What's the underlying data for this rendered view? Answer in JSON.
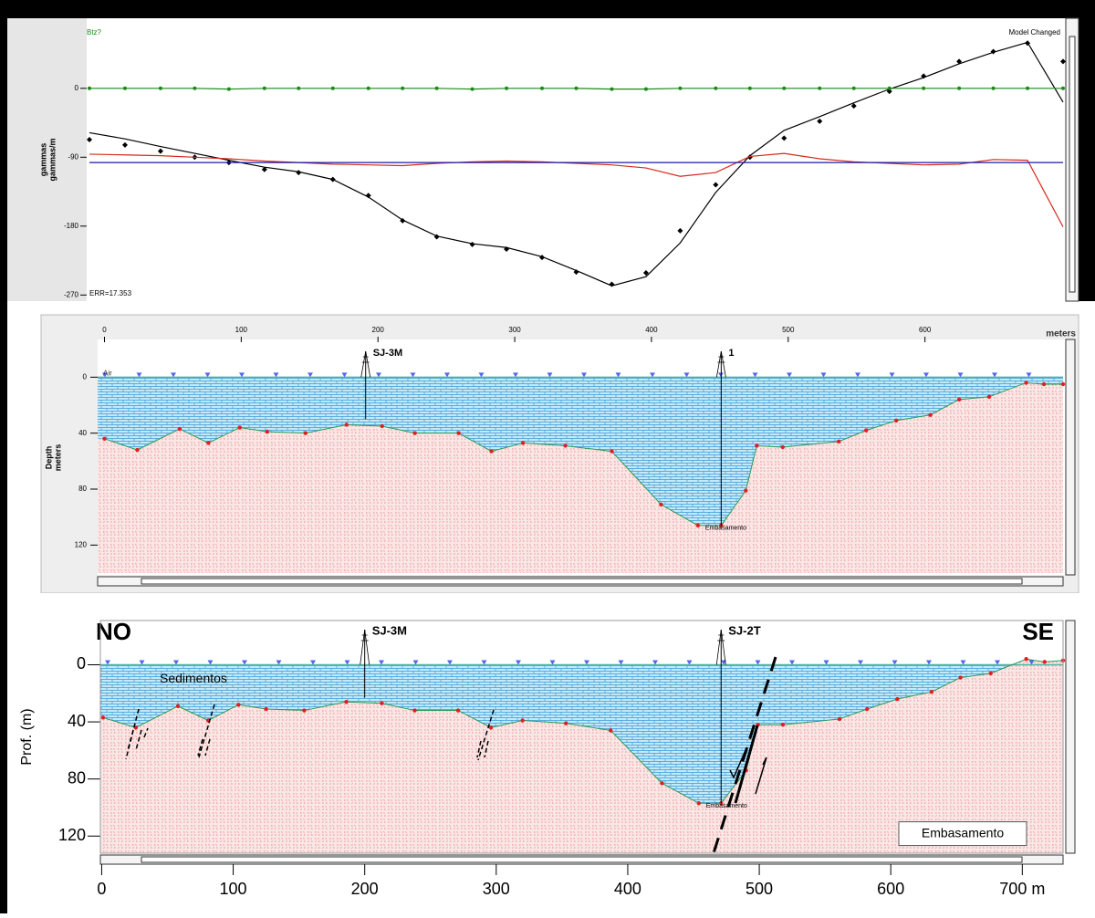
{
  "chart_data": [
    {
      "type": "line",
      "title": "Btz?",
      "status": "Model Changed",
      "ylabel": [
        "gammas",
        "gammas/m"
      ],
      "annotation": "ERR=17.353",
      "xlim": [
        -13,
        701
      ],
      "ylim": [
        -278,
        82
      ],
      "yticks": [
        0,
        -90,
        -180,
        -270
      ],
      "x": [
        -11,
        15,
        41,
        66,
        91,
        117,
        142,
        167,
        193,
        218,
        243,
        269,
        294,
        320,
        345,
        371,
        396,
        421,
        447,
        472,
        497,
        523,
        548,
        574,
        599,
        625,
        650,
        675,
        701
      ],
      "series": [
        {
          "color": "#000000",
          "style": "markers",
          "marker": "diamond",
          "values": [
            -67,
            -74,
            -82,
            -90,
            -97,
            -106,
            -110,
            -119,
            -140,
            -173,
            -194,
            -204,
            -210,
            -221,
            -240,
            -256,
            -241,
            -186,
            -126,
            -90,
            -65,
            -43,
            -23,
            -4,
            16,
            35,
            48,
            59,
            35
          ]
        },
        {
          "color": "#000000",
          "style": "line",
          "values": [
            -58,
            -66,
            -76,
            -85,
            -94,
            -103,
            -109,
            -119,
            -142,
            -172,
            -193,
            -203,
            -208,
            -220,
            -238,
            -258,
            -246,
            -202,
            -136,
            -88,
            -55,
            -37,
            -19,
            -1,
            14,
            32,
            47,
            60,
            -18
          ]
        },
        {
          "color": "#1a8a1a",
          "style": "line",
          "marker": "circle",
          "values": [
            0,
            0,
            0,
            0,
            -1,
            0,
            0,
            0,
            0,
            0,
            0,
            -1,
            0,
            0,
            0,
            -1,
            -1,
            0,
            0,
            0,
            0,
            0,
            0,
            0,
            0,
            0,
            0,
            0,
            0
          ]
        },
        {
          "color": "#d42a1e",
          "style": "line",
          "values": [
            -86,
            -87,
            -88,
            -90,
            -92,
            -95,
            -97,
            -99,
            -100,
            -101,
            -98,
            -96,
            -95,
            -96,
            -98,
            -100,
            -104,
            -115,
            -110,
            -89,
            -85,
            -92,
            -96,
            -98,
            -100,
            -99,
            -93,
            -94,
            -181
          ]
        },
        {
          "color": "#1a1aa8",
          "style": "line",
          "values": [
            -97,
            -97,
            -97,
            -97,
            -97,
            -97,
            -97,
            -97,
            -97,
            -97,
            -97,
            -97,
            -97,
            -97,
            -97,
            -97,
            -97,
            -97,
            -97,
            -97,
            -97,
            -97,
            -97,
            -97,
            -97,
            -97,
            -97,
            -97,
            -97
          ]
        }
      ]
    },
    {
      "type": "section",
      "xlabel": "meters",
      "ylabel": [
        "Depth",
        "meters"
      ],
      "surface_label": "Air",
      "xlim": [
        -5,
        701
      ],
      "ylim": [
        -25,
        140
      ],
      "xticks": [
        0,
        100,
        200,
        300,
        400,
        500,
        600
      ],
      "yticks": [
        0,
        40,
        80,
        120
      ],
      "wells": [
        {
          "name": "SJ-3M",
          "x": 191,
          "depth": 30
        },
        {
          "name": "1",
          "x": 451,
          "depth": 106
        }
      ],
      "interface": {
        "label": "Embasamento",
        "x": [
          0,
          24,
          55,
          76,
          99,
          119,
          147,
          177,
          203,
          227,
          259,
          283,
          306,
          337,
          371,
          407,
          434,
          451,
          469,
          477,
          496,
          537,
          557,
          579,
          604,
          625,
          647,
          674,
          687,
          701
        ],
        "depth": [
          44,
          52,
          37,
          47,
          36,
          39,
          40,
          34,
          35,
          40,
          40,
          53,
          47,
          49,
          53,
          91,
          106,
          106,
          81,
          49,
          50,
          46,
          38,
          31,
          27,
          16,
          14,
          4,
          5,
          5
        ]
      }
    },
    {
      "type": "section",
      "ylabel": [
        "Prof. (m)"
      ],
      "corner_labels": [
        "NO",
        "SE"
      ],
      "layer_labels": [
        "Sedimentos",
        "Embasamento"
      ],
      "xlim": [
        -1,
        731
      ],
      "ylim": [
        -31,
        132
      ],
      "xticks": [
        0,
        100,
        200,
        300,
        400,
        500,
        600,
        {
          "value": 700,
          "label": "700 m"
        }
      ],
      "yticks": [
        0,
        40,
        80,
        120
      ],
      "wells": [
        {
          "name": "SJ-3M",
          "x": 200,
          "depth": 23
        },
        {
          "name": "SJ-2T",
          "x": 471,
          "depth": 97
        }
      ],
      "interface": {
        "label": "Embasamento",
        "x": [
          1,
          26,
          58,
          81,
          104,
          125,
          154,
          186,
          213,
          238,
          271,
          296,
          320,
          353,
          387,
          426,
          454,
          471,
          490,
          499,
          518,
          561,
          582,
          605,
          631,
          653,
          676,
          703,
          717,
          731
        ],
        "depth": [
          37,
          44,
          29,
          39,
          28,
          31,
          32,
          26,
          27,
          32,
          32,
          44,
          39,
          41,
          46,
          83,
          97,
          97,
          74,
          42,
          42,
          38,
          31,
          24,
          19,
          9,
          6,
          -4,
          -2,
          -3
        ]
      }
    }
  ]
}
